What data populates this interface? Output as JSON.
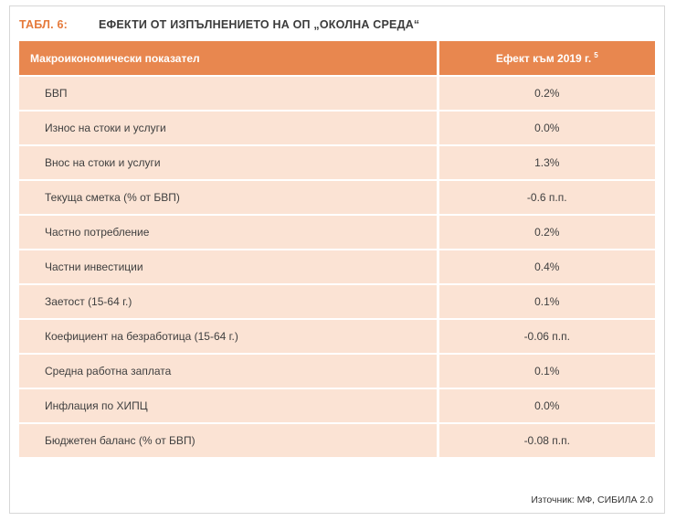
{
  "caption": {
    "label": "ТАБЛ. 6:",
    "title": "ЕФЕКТИ ОТ ИЗПЪЛНЕНИЕТО НА ОП „ОКОЛНА СРЕДА“"
  },
  "table": {
    "headers": [
      "Макроикономически показател",
      "Ефект към 2019 г."
    ],
    "header_note_ref": "5",
    "rows": [
      {
        "indicator": "БВП",
        "effect": "0.2%"
      },
      {
        "indicator": "Износ на стоки и услуги",
        "effect": "0.0%"
      },
      {
        "indicator": "Внос на стоки и услуги",
        "effect": "1.3%"
      },
      {
        "indicator": "Текуща сметка (% от БВП)",
        "effect": "-0.6 п.п."
      },
      {
        "indicator": "Частно потребление",
        "effect": "0.2%"
      },
      {
        "indicator": "Частни инвестиции",
        "effect": "0.4%"
      },
      {
        "indicator": "Заетост (15-64 г.)",
        "effect": "0.1%"
      },
      {
        "indicator": "Коефициент на безработица (15-64 г.)",
        "effect": "-0.06 п.п."
      },
      {
        "indicator": "Средна работна заплата",
        "effect": "0.1%"
      },
      {
        "indicator": "Инфлация по ХИПЦ",
        "effect": "0.0%"
      },
      {
        "indicator": "Бюджетен баланс (% от БВП)",
        "effect": "-0.08 п.п."
      }
    ]
  },
  "source": "Източник: МФ, СИБИЛА 2.0",
  "colors": {
    "accent": "#E5793A",
    "header_bg": "#E8874F",
    "row_bg": "#FBE3D4",
    "frame_border": "#D7D7D7"
  }
}
